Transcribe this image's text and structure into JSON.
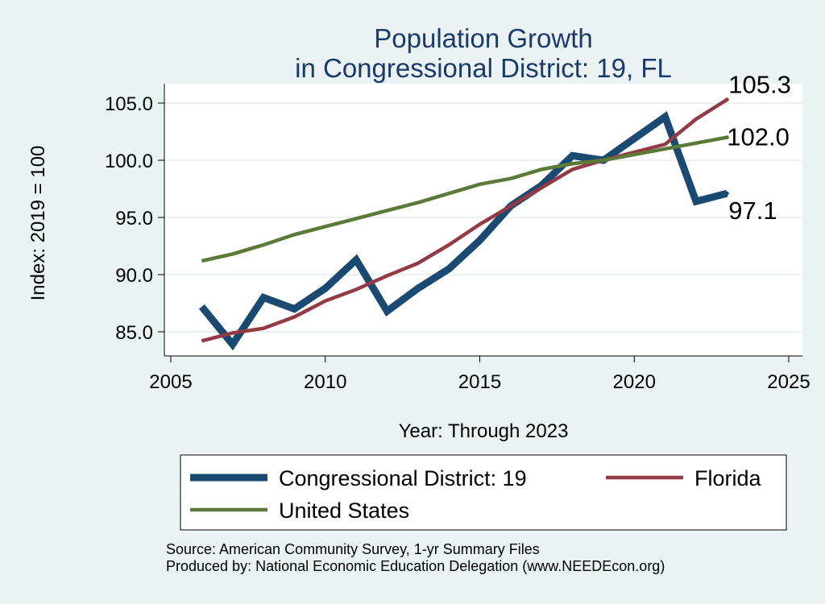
{
  "chart_data": {
    "type": "line",
    "title": [
      "Population Growth",
      "in Congressional District: 19, FL"
    ],
    "xlabel": "Year: Through 2023",
    "ylabel": "Index: 2019 = 100",
    "xlim": [
      2005,
      2025
    ],
    "ylim": [
      82.5,
      107.5
    ],
    "xticks": [
      2005,
      2010,
      2015,
      2020,
      2025
    ],
    "yticks": [
      85.0,
      90.0,
      95.0,
      100.0,
      105.0
    ],
    "ytick_labels": [
      "85.0",
      "90.0",
      "95.0",
      "100.0",
      "105.0"
    ],
    "grid": "horizontal",
    "x": [
      2006,
      2007,
      2008,
      2009,
      2010,
      2011,
      2012,
      2013,
      2014,
      2015,
      2016,
      2017,
      2018,
      2019,
      2020,
      2021,
      2022,
      2023
    ],
    "series": [
      {
        "name": "Congressional District: 19",
        "color": "#1a4a72",
        "values": [
          87.2,
          83.9,
          88.0,
          87.0,
          88.8,
          91.3,
          86.8,
          88.8,
          90.5,
          93.0,
          96.0,
          97.8,
          100.4,
          100.0,
          101.9,
          103.8,
          96.4,
          97.1
        ],
        "end_label": "97.1"
      },
      {
        "name": "Florida",
        "color": "#943a44",
        "values": [
          84.2,
          84.9,
          85.3,
          86.3,
          87.7,
          88.7,
          89.9,
          91.0,
          92.6,
          94.4,
          96.0,
          97.6,
          99.2,
          100.0,
          100.7,
          101.4,
          103.6,
          105.3
        ],
        "end_label": "105.3"
      },
      {
        "name": "United States",
        "color": "#5b7a3a",
        "values": [
          91.2,
          91.8,
          92.6,
          93.5,
          94.2,
          94.9,
          95.6,
          96.3,
          97.1,
          97.9,
          98.4,
          99.2,
          99.7,
          100.0,
          100.5,
          101.0,
          101.5,
          102.0
        ],
        "end_label": "102.0"
      }
    ],
    "legend": {
      "placement": "bottom",
      "order": [
        "Congressional District: 19",
        "Florida",
        "United States"
      ]
    },
    "source_lines": [
      "Source: American Community Survey, 1-yr Summary Files",
      "Produced by: National Economic Education Delegation (www.NEEDEcon.org)"
    ]
  }
}
